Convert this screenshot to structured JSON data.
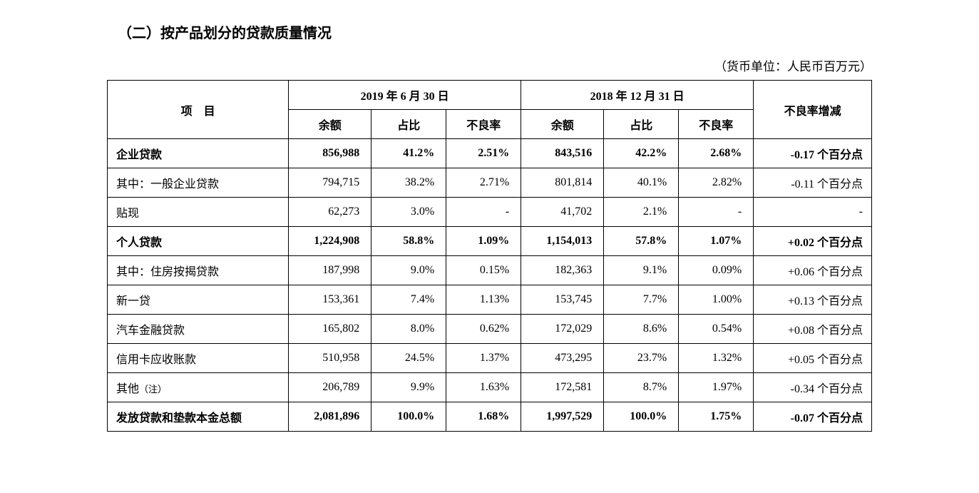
{
  "title": "（二）按产品划分的贷款质量情况",
  "unit": "（货币单位：人民币百万元）",
  "table": {
    "header": {
      "item": "项　目",
      "period1": "2019 年 6 月 30 日",
      "period2": "2018 年 12 月 31 日",
      "balance": "余额",
      "ratio": "占比",
      "npl": "不良率",
      "delta": "不良率增减"
    },
    "rows": [
      {
        "bold": true,
        "indent": 0,
        "label": "企业贷款",
        "b1": "856,988",
        "r1": "41.2%",
        "n1": "2.51%",
        "b2": "843,516",
        "r2": "42.2%",
        "n2": "2.68%",
        "delta": "-0.17 个百分点"
      },
      {
        "bold": false,
        "indent": 1,
        "label": "其中：一般企业贷款",
        "b1": "794,715",
        "r1": "38.2%",
        "n1": "2.71%",
        "b2": "801,814",
        "r2": "40.1%",
        "n2": "2.82%",
        "delta": "-0.11 个百分点"
      },
      {
        "bold": false,
        "indent": 2,
        "label": "贴现",
        "b1": "62,273",
        "r1": "3.0%",
        "n1": "-",
        "b2": "41,702",
        "r2": "2.1%",
        "n2": "-",
        "delta": "-"
      },
      {
        "bold": true,
        "indent": 0,
        "label": "个人贷款",
        "b1": "1,224,908",
        "r1": "58.8%",
        "n1": "1.09%",
        "b2": "1,154,013",
        "r2": "57.8%",
        "n2": "1.07%",
        "delta": "+0.02 个百分点"
      },
      {
        "bold": false,
        "indent": 1,
        "label": "其中：住房按揭贷款",
        "b1": "187,998",
        "r1": "9.0%",
        "n1": "0.15%",
        "b2": "182,363",
        "r2": "9.1%",
        "n2": "0.09%",
        "delta": "+0.06 个百分点"
      },
      {
        "bold": false,
        "indent": 2,
        "label": "新一贷",
        "b1": "153,361",
        "r1": "7.4%",
        "n1": "1.13%",
        "b2": "153,745",
        "r2": "7.7%",
        "n2": "1.00%",
        "delta": "+0.13 个百分点"
      },
      {
        "bold": false,
        "indent": 2,
        "label": "汽车金融贷款",
        "b1": "165,802",
        "r1": "8.0%",
        "n1": "0.62%",
        "b2": "172,029",
        "r2": "8.6%",
        "n2": "0.54%",
        "delta": "+0.08 个百分点"
      },
      {
        "bold": false,
        "indent": 2,
        "label": "信用卡应收账款",
        "b1": "510,958",
        "r1": "24.5%",
        "n1": "1.37%",
        "b2": "473,295",
        "r2": "23.7%",
        "n2": "1.32%",
        "delta": "+0.05 个百分点"
      },
      {
        "bold": false,
        "indent": 2,
        "label": "其他",
        "note": "（注）",
        "b1": "206,789",
        "r1": "9.9%",
        "n1": "1.63%",
        "b2": "172,581",
        "r2": "8.7%",
        "n2": "1.97%",
        "delta": "-0.34 个百分点"
      },
      {
        "bold": true,
        "indent": 0,
        "label": "发放贷款和垫款本金总额",
        "b1": "2,081,896",
        "r1": "100.0%",
        "n1": "1.68%",
        "b2": "1,997,529",
        "r2": "100.0%",
        "n2": "1.75%",
        "delta": "-0.07 个百分点"
      }
    ]
  },
  "styling": {
    "text_color": "#000000",
    "background_color": "#ffffff",
    "border_color": "#000000",
    "title_fontsize": 20,
    "body_fontsize": 16,
    "note_fontsize": 13,
    "font_family": "SimSun, 宋体, serif",
    "col_widths_pct": [
      23,
      10,
      9,
      9,
      10,
      9,
      9,
      15
    ]
  }
}
